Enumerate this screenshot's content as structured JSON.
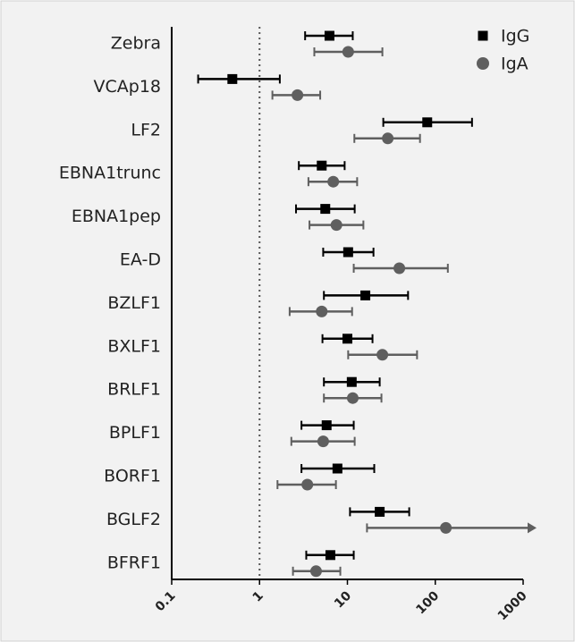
{
  "chart_data": {
    "type": "forest",
    "categories": [
      "Zebra",
      "VCAp18",
      "LF2",
      "EBNA1trunc",
      "EBNA1pep",
      "EA-D",
      "BZLF1",
      "BXLF1",
      "BRLF1",
      "BPLF1",
      "BORF1",
      "BGLF2",
      "BFRF1"
    ],
    "series": [
      {
        "name": "IgG",
        "color": "#000000",
        "marker": "square",
        "values": [
          6.25,
          0.49,
          81,
          5.1,
          5.6,
          10.2,
          16,
          10,
          11.2,
          5.8,
          7.7,
          23.3,
          6.4
        ],
        "lower": [
          3.3,
          0.2,
          25.6,
          2.8,
          2.6,
          5.3,
          5.4,
          5.2,
          5.4,
          3.0,
          3.0,
          10.7,
          3.4
        ],
        "upper": [
          11.5,
          1.7,
          262,
          9.3,
          12.1,
          19.8,
          49,
          19.3,
          23.3,
          11.8,
          20.2,
          50.5,
          11.8
        ]
      },
      {
        "name": "IgA",
        "color": "#5f5f5f",
        "marker": "circle",
        "values": [
          10.2,
          2.7,
          28.8,
          6.9,
          7.5,
          39,
          5.1,
          25,
          11.5,
          5.3,
          3.5,
          132,
          4.4
        ],
        "lower": [
          4.2,
          1.4,
          12,
          3.6,
          3.7,
          11.8,
          2.2,
          10.2,
          5.4,
          2.3,
          1.6,
          16.7,
          2.4
        ],
        "upper": [
          25,
          4.9,
          67,
          12.9,
          15.2,
          139,
          11.3,
          62,
          24.4,
          12.1,
          7.4,
          null,
          8.3
        ]
      }
    ],
    "xscale": "log",
    "xlim": [
      0.1,
      1000
    ],
    "xticks": [
      0.1,
      1,
      10,
      100,
      1000
    ],
    "refline": 1,
    "legend": "top-right"
  }
}
